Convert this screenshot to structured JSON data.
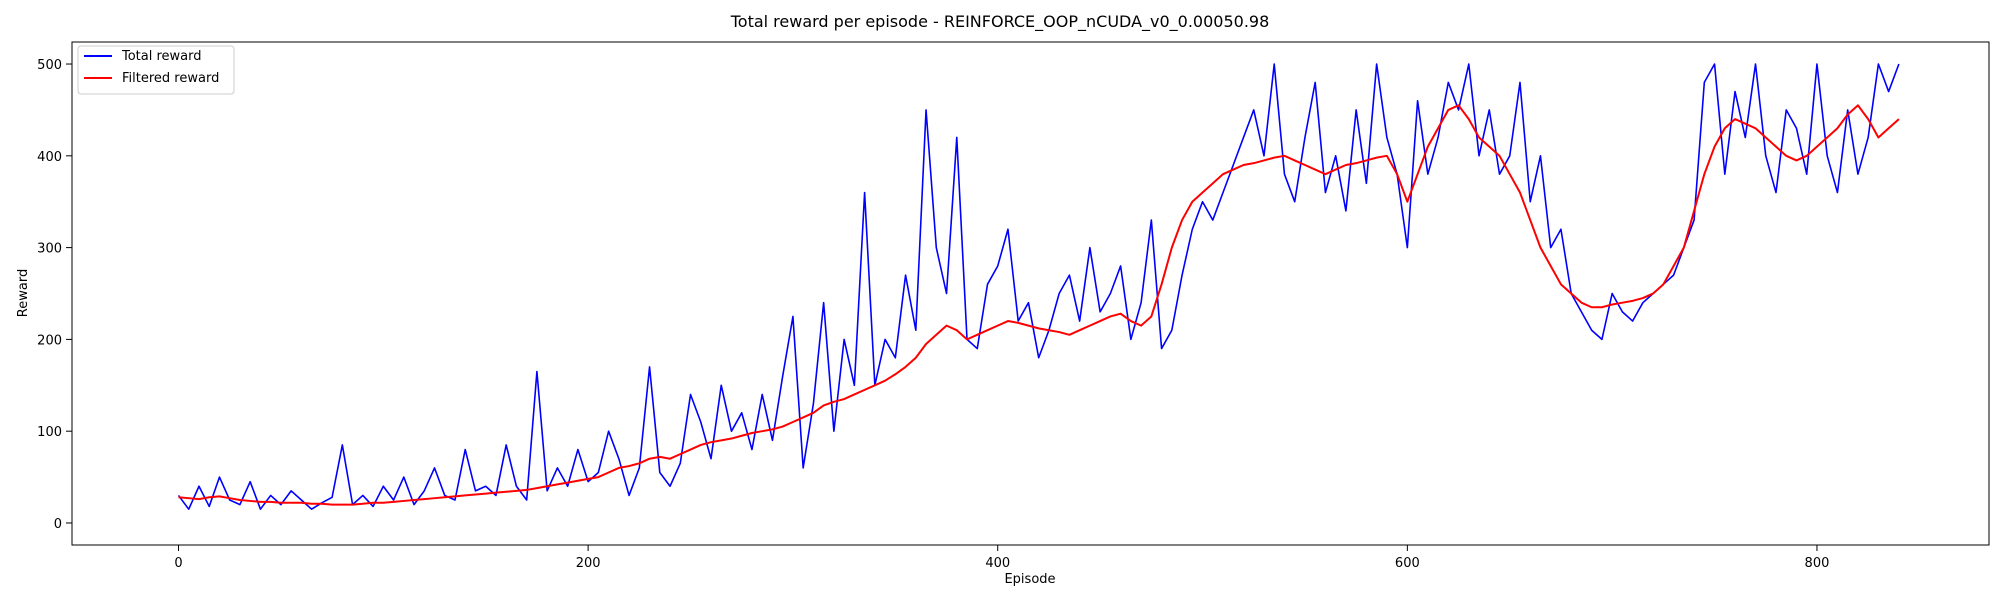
{
  "chart_data": {
    "type": "line",
    "title": "Total reward per episode - REINFORCE_OOP_nCUDA_v0_0.00050.98",
    "xlabel": "Episode",
    "ylabel": "Reward",
    "xlim": [
      -52,
      884
    ],
    "ylim": [
      -24,
      524
    ],
    "xticks": [
      0,
      200,
      400,
      600,
      800
    ],
    "yticks": [
      0,
      100,
      200,
      300,
      400,
      500
    ],
    "legend_position": "top-left",
    "series": [
      {
        "name": "Total reward",
        "color": "#0000ff",
        "x": [
          0,
          5,
          10,
          15,
          20,
          25,
          30,
          35,
          40,
          45,
          50,
          55,
          60,
          65,
          70,
          75,
          80,
          85,
          90,
          95,
          100,
          105,
          110,
          115,
          120,
          125,
          130,
          135,
          140,
          145,
          150,
          155,
          160,
          165,
          170,
          175,
          180,
          185,
          190,
          195,
          200,
          205,
          210,
          215,
          220,
          225,
          230,
          235,
          240,
          245,
          250,
          255,
          260,
          265,
          270,
          275,
          280,
          285,
          290,
          295,
          300,
          305,
          310,
          315,
          320,
          325,
          330,
          335,
          340,
          345,
          350,
          355,
          360,
          365,
          370,
          375,
          380,
          385,
          390,
          395,
          400,
          405,
          410,
          415,
          420,
          425,
          430,
          435,
          440,
          445,
          450,
          455,
          460,
          465,
          470,
          475,
          480,
          485,
          490,
          495,
          500,
          505,
          510,
          515,
          520,
          525,
          530,
          535,
          540,
          545,
          550,
          555,
          560,
          565,
          570,
          575,
          580,
          585,
          590,
          595,
          600,
          605,
          610,
          615,
          620,
          625,
          630,
          635,
          640,
          645,
          650,
          655,
          660,
          665,
          670,
          675,
          680,
          685,
          690,
          695,
          700,
          705,
          710,
          715,
          720,
          725,
          730,
          735,
          740,
          745,
          750,
          755,
          760,
          765,
          770,
          775,
          780,
          785,
          790,
          795,
          800,
          805,
          810,
          815,
          820,
          825,
          830,
          835,
          840
        ],
        "y": [
          30,
          15,
          40,
          18,
          50,
          25,
          20,
          45,
          15,
          30,
          20,
          35,
          25,
          15,
          22,
          28,
          85,
          20,
          30,
          18,
          40,
          25,
          50,
          20,
          35,
          60,
          30,
          25,
          80,
          35,
          40,
          30,
          85,
          40,
          25,
          165,
          35,
          60,
          40,
          80,
          45,
          55,
          100,
          70,
          30,
          60,
          170,
          55,
          40,
          65,
          140,
          110,
          70,
          150,
          100,
          120,
          80,
          140,
          90,
          160,
          225,
          60,
          130,
          240,
          100,
          200,
          150,
          360,
          150,
          200,
          180,
          270,
          210,
          450,
          300,
          250,
          420,
          200,
          190,
          260,
          280,
          320,
          220,
          240,
          180,
          210,
          250,
          270,
          220,
          300,
          230,
          250,
          280,
          200,
          240,
          330,
          190,
          210,
          270,
          320,
          350,
          330,
          360,
          390,
          420,
          450,
          400,
          500,
          380,
          350,
          420,
          480,
          360,
          400,
          340,
          450,
          370,
          500,
          420,
          380,
          300,
          460,
          380,
          420,
          480,
          450,
          500,
          400,
          450,
          380,
          400,
          480,
          350,
          400,
          300,
          320,
          250,
          230,
          210,
          200,
          250,
          230,
          220,
          240,
          250,
          260,
          270,
          300,
          330,
          480,
          500,
          380,
          470,
          420,
          500,
          400,
          360,
          450,
          430,
          380,
          500,
          400,
          360,
          450,
          380,
          420,
          500,
          470,
          500
        ]
      },
      {
        "name": "Filtered reward",
        "color": "#ff0000",
        "x": [
          0,
          5,
          10,
          15,
          20,
          25,
          30,
          35,
          40,
          45,
          50,
          55,
          60,
          65,
          70,
          75,
          80,
          85,
          90,
          95,
          100,
          105,
          110,
          115,
          120,
          125,
          130,
          135,
          140,
          145,
          150,
          155,
          160,
          165,
          170,
          175,
          180,
          185,
          190,
          195,
          200,
          205,
          210,
          215,
          220,
          225,
          230,
          235,
          240,
          245,
          250,
          255,
          260,
          265,
          270,
          275,
          280,
          285,
          290,
          295,
          300,
          305,
          310,
          315,
          320,
          325,
          330,
          335,
          340,
          345,
          350,
          355,
          360,
          365,
          370,
          375,
          380,
          385,
          390,
          395,
          400,
          405,
          410,
          415,
          420,
          425,
          430,
          435,
          440,
          445,
          450,
          455,
          460,
          465,
          470,
          475,
          480,
          485,
          490,
          495,
          500,
          505,
          510,
          515,
          520,
          525,
          530,
          535,
          540,
          545,
          550,
          555,
          560,
          565,
          570,
          575,
          580,
          585,
          590,
          595,
          600,
          605,
          610,
          615,
          620,
          625,
          630,
          635,
          640,
          645,
          650,
          655,
          660,
          665,
          670,
          675,
          680,
          685,
          690,
          695,
          700,
          705,
          710,
          715,
          720,
          725,
          730,
          735,
          740,
          745,
          750,
          755,
          760,
          765,
          770,
          775,
          780,
          785,
          790,
          795,
          800,
          805,
          810,
          815,
          820,
          825,
          830,
          835,
          840
        ],
        "y": [
          28,
          27,
          26,
          28,
          29,
          27,
          25,
          24,
          23,
          23,
          22,
          22,
          22,
          21,
          21,
          20,
          20,
          20,
          21,
          22,
          22,
          23,
          24,
          25,
          26,
          27,
          28,
          29,
          30,
          31,
          32,
          33,
          34,
          35,
          36,
          38,
          40,
          42,
          44,
          46,
          48,
          50,
          55,
          60,
          62,
          65,
          70,
          72,
          70,
          75,
          80,
          85,
          88,
          90,
          92,
          95,
          98,
          100,
          102,
          105,
          110,
          115,
          120,
          128,
          132,
          135,
          140,
          145,
          150,
          155,
          162,
          170,
          180,
          195,
          205,
          215,
          210,
          200,
          205,
          210,
          215,
          220,
          218,
          215,
          212,
          210,
          208,
          205,
          210,
          215,
          220,
          225,
          228,
          220,
          215,
          225,
          260,
          300,
          330,
          350,
          360,
          370,
          380,
          385,
          390,
          392,
          395,
          398,
          400,
          395,
          390,
          385,
          380,
          385,
          390,
          392,
          395,
          398,
          400,
          380,
          350,
          380,
          410,
          430,
          450,
          455,
          440,
          420,
          410,
          400,
          380,
          360,
          330,
          300,
          280,
          260,
          250,
          240,
          235,
          235,
          238,
          240,
          242,
          245,
          250,
          260,
          280,
          300,
          340,
          380,
          410,
          430,
          440,
          435,
          430,
          420,
          410,
          400,
          395,
          400,
          410,
          420,
          430,
          445,
          455,
          440,
          420,
          430,
          440
        ]
      }
    ]
  }
}
